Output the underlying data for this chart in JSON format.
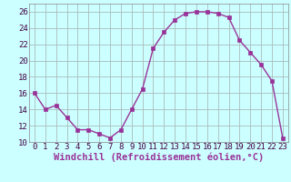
{
  "x": [
    0,
    1,
    2,
    3,
    4,
    5,
    6,
    7,
    8,
    9,
    10,
    11,
    12,
    13,
    14,
    15,
    16,
    17,
    18,
    19,
    20,
    21,
    22,
    23
  ],
  "y": [
    16.0,
    14.0,
    14.5,
    13.0,
    11.5,
    11.5,
    11.0,
    10.5,
    11.5,
    14.0,
    16.5,
    21.5,
    23.5,
    25.0,
    25.8,
    26.0,
    26.0,
    25.8,
    25.3,
    22.5,
    21.0,
    19.5,
    17.5,
    10.5
  ],
  "line_color": "#993399",
  "marker": "s",
  "marker_size": 2.5,
  "bg_color": "#ccffff",
  "grid_color": "#aabbbb",
  "xlabel": "Windchill (Refroidissement éolien,°C)",
  "xlabel_fontsize": 7.5,
  "tick_fontsize": 6.5,
  "ylim": [
    10,
    27
  ],
  "yticks": [
    10,
    12,
    14,
    16,
    18,
    20,
    22,
    24,
    26
  ],
  "xlim": [
    -0.5,
    23.5
  ],
  "xticks": [
    0,
    1,
    2,
    3,
    4,
    5,
    6,
    7,
    8,
    9,
    10,
    11,
    12,
    13,
    14,
    15,
    16,
    17,
    18,
    19,
    20,
    21,
    22,
    23
  ]
}
